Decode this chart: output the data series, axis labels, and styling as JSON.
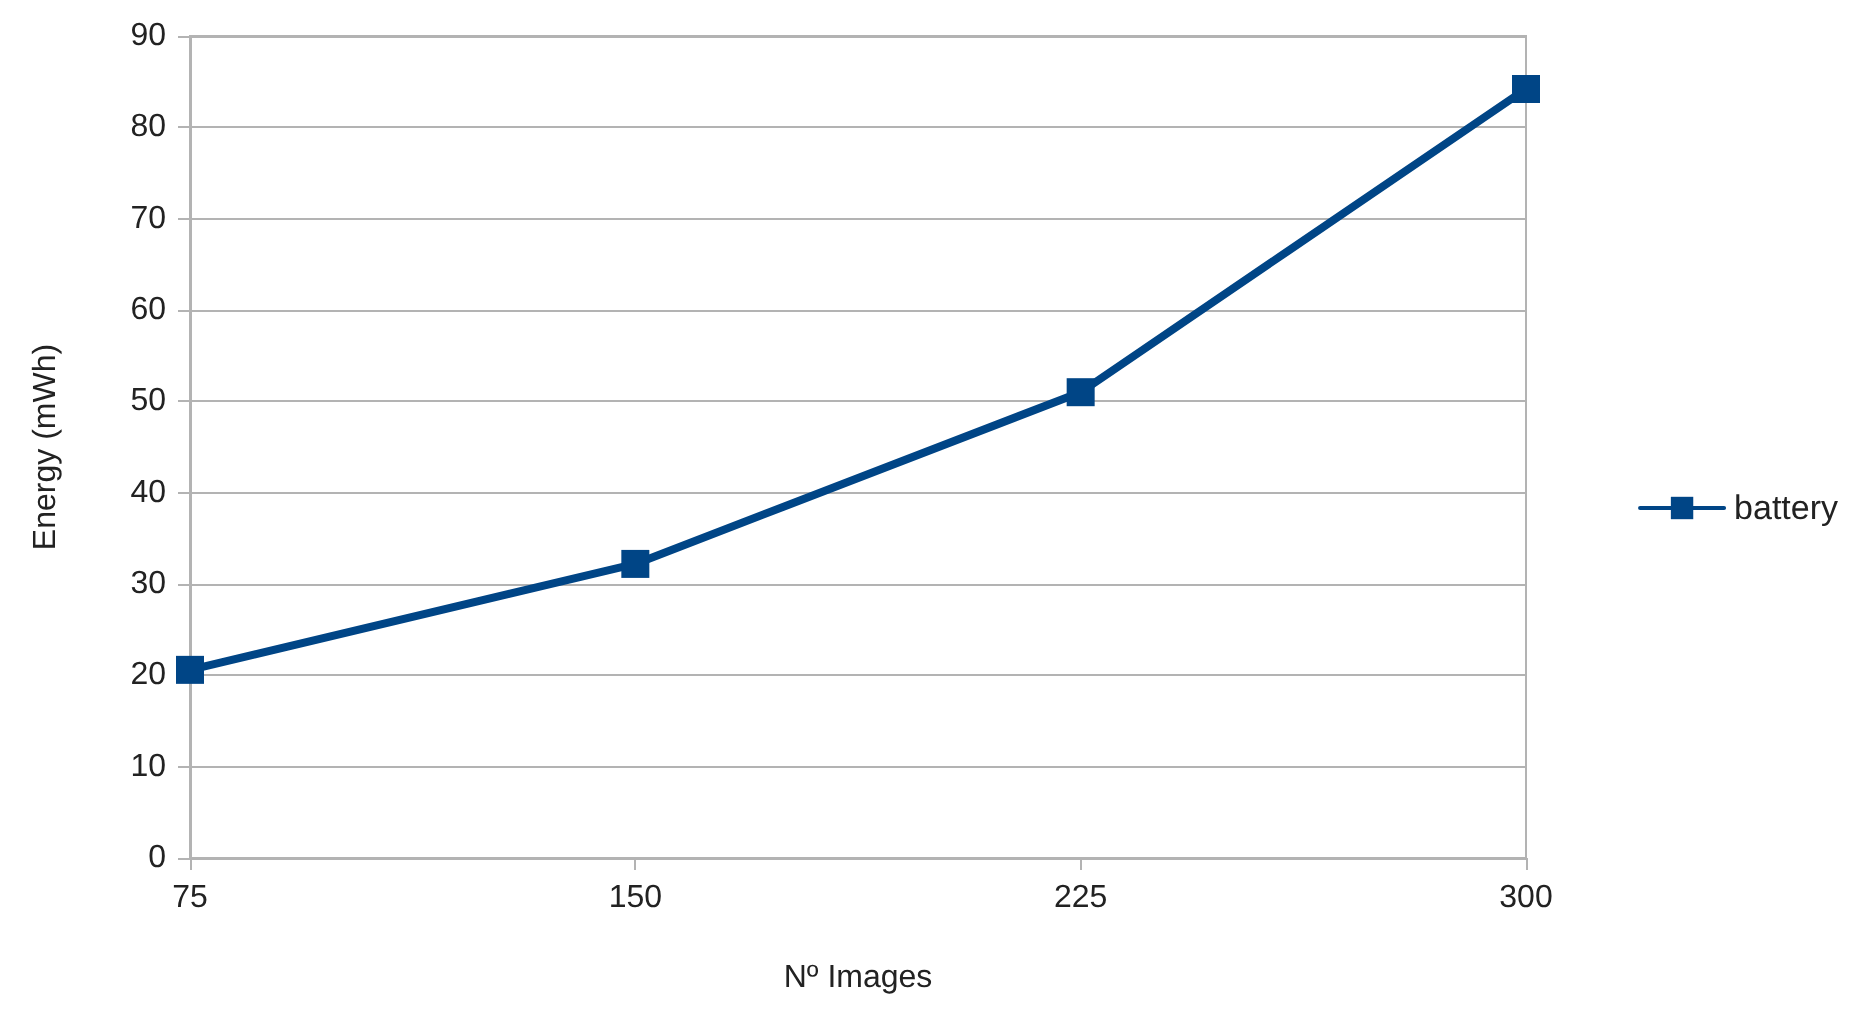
{
  "chart_data": {
    "type": "line",
    "xlabel": "Nº Images",
    "ylabel": "Energy (mWh)",
    "x": [
      75,
      150,
      225,
      300
    ],
    "series": [
      {
        "name": "battery",
        "color": "#004586",
        "values": [
          20.6,
          32.2,
          51.0,
          84.2
        ]
      }
    ],
    "xlim": [
      75,
      300
    ],
    "xticks": [
      75,
      150,
      225,
      300
    ],
    "ylim": [
      0,
      90
    ],
    "yticks": [
      0,
      10,
      20,
      30,
      40,
      50,
      60,
      70,
      80,
      90
    ],
    "grid": "y",
    "legend": "right",
    "marker": "square",
    "line_style": "solid"
  }
}
